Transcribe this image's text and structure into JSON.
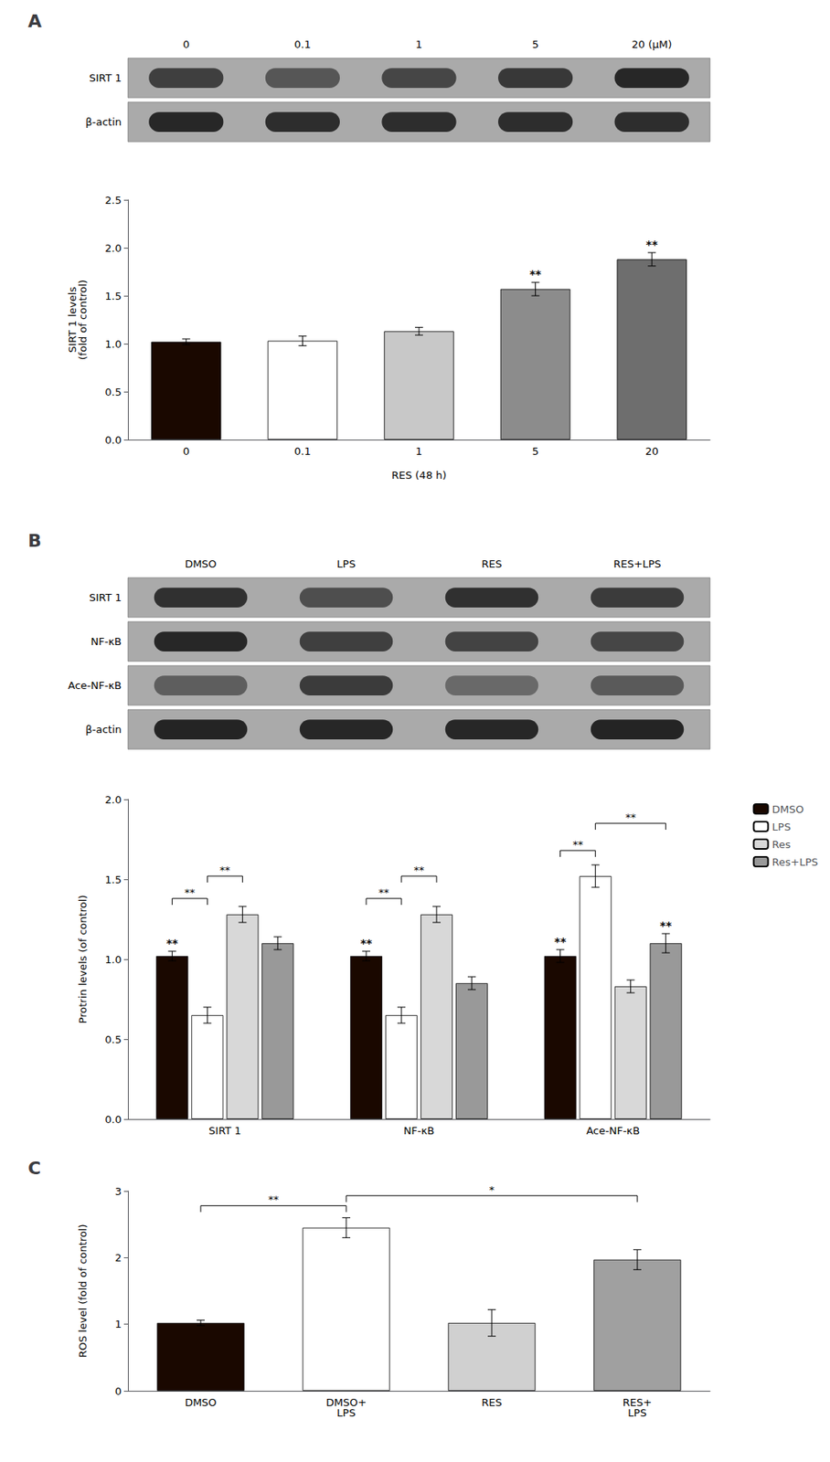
{
  "chart_data": [
    {
      "type": "blot",
      "title": "A",
      "categories": [
        "0",
        "0.1",
        "1",
        "5",
        "20 (μM)"
      ],
      "rows": [
        "SIRT 1",
        "β-actin"
      ],
      "values": [
        [
          0.7,
          0.55,
          0.65,
          0.75,
          0.85
        ],
        [
          0.85,
          0.82,
          0.82,
          0.82,
          0.82
        ]
      ],
      "color": "#111111"
    },
    {
      "type": "bar",
      "categories": [
        "0",
        "0.1",
        "1",
        "5",
        "20"
      ],
      "values": [
        1.02,
        1.03,
        1.13,
        1.57,
        1.88
      ],
      "errors": [
        0.03,
        0.05,
        0.04,
        0.07,
        0.07
      ],
      "colors": [
        "#1a0800",
        "#ffffff",
        "#c8c8c8",
        "#8c8c8c",
        "#6e6e6e"
      ],
      "xlabel": "RES (48 h)",
      "ylabel": "SIRT 1 levels\n(fold of control)",
      "ylim": [
        0.0,
        2.5
      ],
      "yticks": [
        {
          "value": 0.0,
          "label": "0.0"
        },
        0.5,
        {
          "value": 1.0,
          "label": "1.0"
        },
        1.5,
        {
          "value": 2.0,
          "label": "2.0"
        },
        2.5
      ],
      "grid": false,
      "annotations": [
        {
          "category": "5",
          "text": "**"
        },
        {
          "category": "20",
          "text": "**"
        }
      ]
    },
    {
      "type": "blot",
      "title": "B",
      "categories": [
        "DMSO",
        "LPS",
        "RES",
        "RES+LPS"
      ],
      "rows": [
        "SIRT 1",
        "NF-κB",
        "Ace-NF-κB",
        "β-actin"
      ],
      "values": [
        [
          0.8,
          0.6,
          0.8,
          0.72
        ],
        [
          0.85,
          0.7,
          0.68,
          0.65
        ],
        [
          0.5,
          0.72,
          0.42,
          0.52
        ],
        [
          0.88,
          0.85,
          0.85,
          0.88
        ]
      ],
      "color": "#111111"
    },
    {
      "type": "bar",
      "categories": [
        "SIRT 1",
        "NF-κB",
        "Ace-NF-κB"
      ],
      "series": [
        {
          "name": "DMSO",
          "color": "#1a0800",
          "values": [
            1.02,
            1.02,
            1.02
          ],
          "errors": [
            0.03,
            0.03,
            0.04
          ]
        },
        {
          "name": "LPS",
          "color": "#ffffff",
          "values": [
            0.65,
            0.65,
            1.52
          ],
          "errors": [
            0.05,
            0.05,
            0.07
          ]
        },
        {
          "name": "Res",
          "color": "#d8d8d8",
          "values": [
            1.28,
            1.28,
            0.83
          ],
          "errors": [
            0.05,
            0.05,
            0.04
          ]
        },
        {
          "name": "Res+LPS",
          "color": "#999999",
          "values": [
            1.1,
            0.85,
            1.1
          ],
          "errors": [
            0.04,
            0.04,
            0.06
          ]
        }
      ],
      "ylabel": "Protrin levels (of control)",
      "ylim": [
        0.0,
        2.0
      ],
      "yticks": [
        {
          "value": 0.0,
          "label": "0.0"
        },
        0.5,
        {
          "value": 1.0,
          "label": "1.0"
        },
        1.5,
        {
          "value": 2.0,
          "label": "2.0"
        }
      ],
      "grid": false,
      "legend": "right",
      "annotations": [
        {
          "category": "SIRT 1",
          "from": "DMSO",
          "to": "LPS",
          "y": 1.38,
          "text": "**"
        },
        {
          "category": "SIRT 1",
          "from": "LPS",
          "to": "Res",
          "y": 1.52,
          "text": "**"
        },
        {
          "category": "SIRT 1",
          "series": "DMSO",
          "text": "**"
        },
        {
          "category": "NF-κB",
          "from": "DMSO",
          "to": "LPS",
          "y": 1.38,
          "text": "**"
        },
        {
          "category": "NF-κB",
          "from": "LPS",
          "to": "Res",
          "y": 1.52,
          "text": "**"
        },
        {
          "category": "NF-κB",
          "series": "DMSO",
          "text": "**"
        },
        {
          "category": "Ace-NF-κB",
          "from": "DMSO",
          "to": "LPS",
          "y": 1.68,
          "text": "**"
        },
        {
          "category": "Ace-NF-κB",
          "from": "LPS",
          "to": "Res+LPS",
          "y": 1.85,
          "text": "**"
        },
        {
          "category": "Ace-NF-κB",
          "series": "DMSO",
          "text": "**"
        },
        {
          "category": "Ace-NF-κB",
          "series": "Res+LPS",
          "text": "**"
        }
      ]
    },
    {
      "type": "bar",
      "title": "C",
      "categories": [
        "DMSO",
        "DMSO+\nLPS",
        "RES",
        "RES+\nLPS"
      ],
      "values": [
        1.02,
        2.45,
        1.02,
        1.97
      ],
      "errors": [
        0.04,
        0.15,
        0.2,
        0.15
      ],
      "colors": [
        "#1a0800",
        "#ffffff",
        "#d0d0d0",
        "#a0a0a0"
      ],
      "ylabel": "ROS level (fold of control)",
      "ylim": [
        0,
        3
      ],
      "yticks": [
        0,
        1,
        2,
        3
      ],
      "grid": false,
      "annotations": [
        {
          "from": "DMSO",
          "to": "DMSO+\nLPS",
          "y": 2.78,
          "text": "**"
        },
        {
          "from": "DMSO+\nLPS",
          "to": "RES+\nLPS",
          "y": 2.93,
          "text": "*"
        }
      ]
    }
  ]
}
